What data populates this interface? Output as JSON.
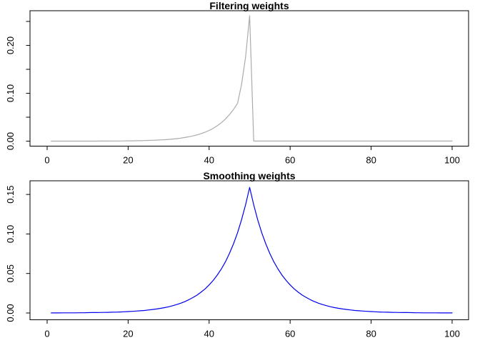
{
  "window": {
    "background": "#ffffff",
    "foreground": "#000000"
  },
  "chart_data": [
    {
      "type": "line",
      "title": "Filtering weights",
      "xlabel": "",
      "ylabel": "",
      "x_from": 1,
      "x_to": 100,
      "xlim": [
        -4.23,
        104.06
      ],
      "ylim": [
        -0.0104,
        0.2724
      ],
      "xticks": [
        0,
        20,
        40,
        60,
        80,
        100
      ],
      "xtick_labels": [
        "0",
        "20",
        "40",
        "60",
        "80",
        "100"
      ],
      "yticks": [
        0,
        0.05,
        0.1,
        0.15,
        0.2,
        0.25
      ],
      "ytick_labels": [
        "0.00",
        "",
        "0.10",
        "",
        "0.20",
        ""
      ],
      "grid": false,
      "legend": null,
      "series": [
        {
          "name": "filtering weights",
          "color": "#ABABAB",
          "values": [
            0.0,
            0.0,
            0.0,
            0.0,
            0.0,
            0.0001,
            0.0001,
            0.0001,
            0.0001,
            0.0001,
            0.0001,
            0.0001,
            0.0002,
            0.0002,
            0.0002,
            0.0003,
            0.0004,
            0.0004,
            0.0005,
            0.0006,
            0.0007,
            0.0009,
            0.001,
            0.0012,
            0.0015,
            0.0018,
            0.0021,
            0.0026,
            0.0031,
            0.0037,
            0.0044,
            0.0053,
            0.0063,
            0.0076,
            0.0091,
            0.0109,
            0.013,
            0.0156,
            0.0187,
            0.0224,
            0.0268,
            0.0321,
            0.0384,
            0.046,
            0.0551,
            0.0659,
            0.0789,
            0.1177,
            0.1756,
            0.262,
            0.0002,
            0.0002,
            0.0002,
            0.0002,
            0.0002,
            0.0002,
            0.0002,
            0.0002,
            0.0002,
            0.0002,
            0.0002,
            0.0002,
            0.0002,
            0.0002,
            0.0002,
            0.0002,
            0.0002,
            0.0002,
            0.0002,
            0.0002,
            0.0002,
            0.0002,
            0.0002,
            0.0002,
            0.0002,
            0.0002,
            0.0002,
            0.0002,
            0.0002,
            0.0002,
            0.0002,
            0.0002,
            0.0002,
            0.0002,
            0.0002,
            0.0002,
            0.0002,
            0.0002,
            0.0002,
            0.0002,
            0.0002,
            0.0002,
            0.0002,
            0.0002,
            0.0002,
            0.0002,
            0.0002,
            0.0002,
            0.0002,
            0.0002
          ]
        }
      ]
    },
    {
      "type": "line",
      "title": "Smoothing weights",
      "xlabel": "",
      "ylabel": "",
      "x_from": 1,
      "x_to": 100,
      "xlim": [
        -4.23,
        104.06
      ],
      "ylim": [
        -0.0086,
        0.1673
      ],
      "xticks": [
        0,
        20,
        40,
        60,
        80,
        100
      ],
      "xtick_labels": [
        "0",
        "20",
        "40",
        "60",
        "80",
        "100"
      ],
      "yticks": [
        0,
        0.05,
        0.1,
        0.15
      ],
      "ytick_labels": [
        "0.00",
        "0.05",
        "0.10",
        "0.15"
      ],
      "grid": false,
      "legend": null,
      "series": [
        {
          "name": "smoothing weights",
          "color": "#0000EE",
          "values": [
            0.0001,
            0.0001,
            0.0001,
            0.0002,
            0.0002,
            0.0002,
            0.0002,
            0.0003,
            0.0003,
            0.0004,
            0.0005,
            0.0005,
            0.0006,
            0.0007,
            0.0008,
            0.001,
            0.0011,
            0.0013,
            0.0015,
            0.0018,
            0.0021,
            0.0024,
            0.0028,
            0.0032,
            0.0038,
            0.0044,
            0.0051,
            0.0059,
            0.0068,
            0.0079,
            0.0092,
            0.0107,
            0.0124,
            0.0144,
            0.0168,
            0.0195,
            0.0226,
            0.0263,
            0.0305,
            0.0355,
            0.0412,
            0.0479,
            0.0556,
            0.0646,
            0.0751,
            0.0873,
            0.1014,
            0.1178,
            0.1369,
            0.159,
            0.1369,
            0.1178,
            0.1014,
            0.0873,
            0.0751,
            0.0646,
            0.0556,
            0.0479,
            0.0412,
            0.0355,
            0.0305,
            0.0263,
            0.0226,
            0.0195,
            0.0168,
            0.0144,
            0.0124,
            0.0107,
            0.0092,
            0.0079,
            0.0068,
            0.0059,
            0.0051,
            0.0044,
            0.0038,
            0.0032,
            0.0028,
            0.0024,
            0.0021,
            0.0018,
            0.0015,
            0.0013,
            0.0011,
            0.001,
            0.0008,
            0.0007,
            0.0006,
            0.0005,
            0.0005,
            0.0004,
            0.0003,
            0.0003,
            0.0002,
            0.0002,
            0.0002,
            0.0002,
            0.0001,
            0.0001,
            0.0001,
            0.0001
          ]
        }
      ]
    }
  ]
}
